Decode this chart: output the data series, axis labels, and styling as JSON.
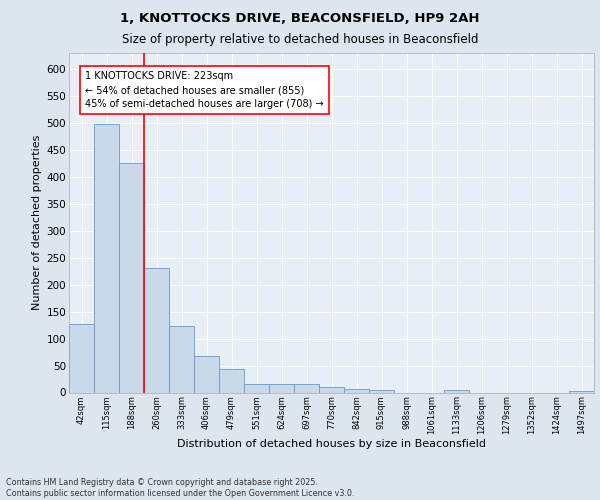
{
  "title1": "1, KNOTTOCKS DRIVE, BEACONSFIELD, HP9 2AH",
  "title2": "Size of property relative to detached houses in Beaconsfield",
  "xlabel": "Distribution of detached houses by size in Beaconsfield",
  "ylabel": "Number of detached properties",
  "categories": [
    "42sqm",
    "115sqm",
    "188sqm",
    "260sqm",
    "333sqm",
    "406sqm",
    "479sqm",
    "551sqm",
    "624sqm",
    "697sqm",
    "770sqm",
    "842sqm",
    "915sqm",
    "988sqm",
    "1061sqm",
    "1133sqm",
    "1206sqm",
    "1279sqm",
    "1352sqm",
    "1424sqm",
    "1497sqm"
  ],
  "values": [
    127,
    497,
    425,
    230,
    124,
    67,
    44,
    15,
    15,
    15,
    11,
    7,
    5,
    0,
    0,
    4,
    0,
    0,
    0,
    0,
    3
  ],
  "bar_color": "#c9d9ea",
  "bar_edgecolor": "#6699cc",
  "annotation_text": "1 KNOTTOCKS DRIVE: 223sqm\n← 54% of detached houses are smaller (855)\n45% of semi-detached houses are larger (708) →",
  "redline_x": 2.5,
  "background_color": "#dde5ee",
  "plot_background": "#e8eef5",
  "footer": "Contains HM Land Registry data © Crown copyright and database right 2025.\nContains public sector information licensed under the Open Government Licence v3.0.",
  "ylim": [
    0,
    630
  ],
  "yticks": [
    0,
    50,
    100,
    150,
    200,
    250,
    300,
    350,
    400,
    450,
    500,
    550,
    600
  ]
}
